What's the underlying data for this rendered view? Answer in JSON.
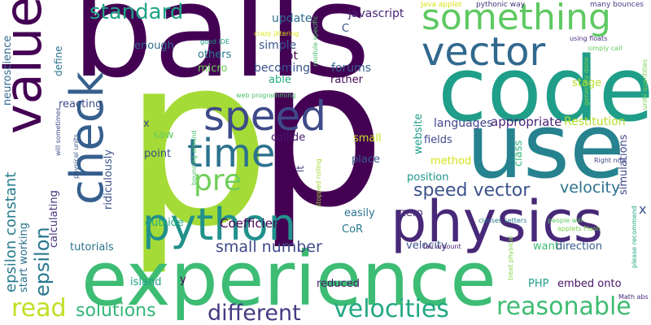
{
  "words": [
    {
      "text": "balls",
      "color": "#440154"
    },
    {
      "text": "p",
      "color": "#a5db36"
    },
    {
      "text": "p",
      "color": "#440154"
    },
    {
      "text": "code",
      "color": "#1f9e89"
    },
    {
      "text": "use",
      "color": "#26828e"
    },
    {
      "text": "physics",
      "color": "#482878"
    },
    {
      "text": "experience",
      "color": "#3dbc74"
    },
    {
      "text": "something",
      "color": "#5ec962"
    },
    {
      "text": "vector",
      "color": "#31688e"
    },
    {
      "text": "python",
      "color": "#21918c"
    },
    {
      "text": "speed",
      "color": "#3e4a89"
    },
    {
      "text": "time",
      "color": "#2c728e"
    },
    {
      "text": "check",
      "color": "#355f8d"
    },
    {
      "text": "value",
      "color": "#440154"
    },
    {
      "text": "standard",
      "color": "#20a386"
    },
    {
      "text": "pre",
      "color": "#6ece58"
    },
    {
      "text": "velocities",
      "color": "#22a884"
    },
    {
      "text": "reasonable",
      "color": "#3fbc73"
    },
    {
      "text": "different",
      "color": "#443a83"
    },
    {
      "text": "solutions",
      "color": "#35b779"
    },
    {
      "text": "read",
      "color": "#c2df23"
    },
    {
      "text": "epsilon",
      "color": "#2a788e"
    },
    {
      "text": "epsilon constant",
      "color": "#287c8e"
    },
    {
      "text": "speed vector",
      "color": "#3b528b"
    },
    {
      "text": "velocity",
      "color": "#2c728e"
    },
    {
      "text": "small number",
      "color": "#3e4a89"
    },
    {
      "text": "Coefficient",
      "color": "#440154"
    },
    {
      "text": "languages",
      "color": "#404688"
    },
    {
      "text": "appropriate",
      "color": "#482475"
    },
    {
      "text": "Restitution",
      "color": "#b5de2b"
    },
    {
      "text": "update",
      "color": "#2e6d8e"
    },
    {
      "text": "javascript",
      "color": "#482475"
    },
    {
      "text": "simple",
      "color": "#3a548c"
    },
    {
      "text": "lot",
      "color": "#440154"
    },
    {
      "text": "becoming",
      "color": "#3b528b"
    },
    {
      "text": "able",
      "color": "#25ab82"
    },
    {
      "text": "forums",
      "color": "#365c8d"
    },
    {
      "text": "rather",
      "color": "#46075a"
    },
    {
      "text": "others",
      "color": "#29798e"
    },
    {
      "text": "enough",
      "color": "#31688e"
    },
    {
      "text": "micro",
      "color": "#6ece58"
    },
    {
      "text": "reacting",
      "color": "#3e4a89"
    },
    {
      "text": "saw",
      "color": "#63cb5f"
    },
    {
      "text": "point",
      "color": "#3b528b"
    },
    {
      "text": "collide",
      "color": "#481a6c"
    },
    {
      "text": "place",
      "color": "#38598c"
    },
    {
      "text": "small",
      "color": "#c8e020"
    },
    {
      "text": "website",
      "color": "#1f9e89"
    },
    {
      "text": "fields",
      "color": "#3e4c8a"
    },
    {
      "text": "method",
      "color": "#d2e21b"
    },
    {
      "text": "position",
      "color": "#1f978b"
    },
    {
      "text": "zero",
      "color": "#46327e"
    },
    {
      "text": "class",
      "color": "#35b779"
    },
    {
      "text": "simulations",
      "color": "#404688"
    },
    {
      "text": "x",
      "color": "#3b528b"
    },
    {
      "text": "x",
      "color": "#404688"
    },
    {
      "text": "outside",
      "color": "#26ad81"
    },
    {
      "text": "ridiculously",
      "color": "#3b528b"
    },
    {
      "text": "calculating",
      "color": "#46337e"
    },
    {
      "text": "neuroscience",
      "color": "#31688e"
    },
    {
      "text": "start working",
      "color": "#2c728e"
    },
    {
      "text": "tutorials",
      "color": "#2c728e"
    },
    {
      "text": "island",
      "color": "#1fa088"
    },
    {
      "text": "y",
      "color": "#440154"
    },
    {
      "text": "easily",
      "color": "#2c728e"
    },
    {
      "text": "CoR",
      "color": "#2a788e"
    },
    {
      "text": "velocity",
      "color": "#3b528b"
    },
    {
      "text": "reduced",
      "color": "#481a6c"
    },
    {
      "text": "want",
      "color": "#3fbc73"
    },
    {
      "text": "direction",
      "color": "#375a8c"
    },
    {
      "text": "PHP",
      "color": "#1f9e89"
    },
    {
      "text": "embed onto",
      "color": "#471063"
    },
    {
      "text": "define",
      "color": "#2c728e"
    },
    {
      "text": "stage",
      "color": "#b8de29"
    },
    {
      "text": "C",
      "color": "#3b528b"
    },
    {
      "text": "lt",
      "color": "#443983"
    },
    {
      "text": "Java applet",
      "color": "#d8e219"
    },
    {
      "text": "pythonic way",
      "color": "#46337e"
    },
    {
      "text": "many bounces",
      "color": "#433e85"
    },
    {
      "text": "using floats",
      "color": "#472d7b"
    },
    {
      "text": "simply call",
      "color": "#63cb5f"
    },
    {
      "text": "good IDE",
      "color": "#1f9e89"
    },
    {
      "text": "crazy jittering",
      "color": "#dde318"
    },
    {
      "text": "module specific",
      "color": "#4ac16d"
    },
    {
      "text": "generally done",
      "color": "#7ad151"
    },
    {
      "text": "units quantities",
      "color": "#7ad151"
    },
    {
      "text": "web programming",
      "color": "#4ac16d"
    },
    {
      "text": "bouncing around",
      "color": "#4ac16d"
    },
    {
      "text": "stopped rolling",
      "color": "#a0da39"
    },
    {
      "text": "will sometimes",
      "color": "#3e4a89"
    },
    {
      "text": "physical units",
      "color": "#3b528b"
    },
    {
      "text": "classes setters",
      "color": "#2a788e"
    },
    {
      "text": "people will",
      "color": "#5ec962"
    },
    {
      "text": "Right now",
      "color": "#404688"
    },
    {
      "text": "applets Flash",
      "color": "#7ad151"
    },
    {
      "text": "fair amount",
      "color": "#481f70"
    },
    {
      "text": "treat physical",
      "color": "#86d549"
    },
    {
      "text": "please recommend",
      "color": "#22a884"
    },
    {
      "text": "Math abs",
      "color": "#472d7b"
    }
  ]
}
